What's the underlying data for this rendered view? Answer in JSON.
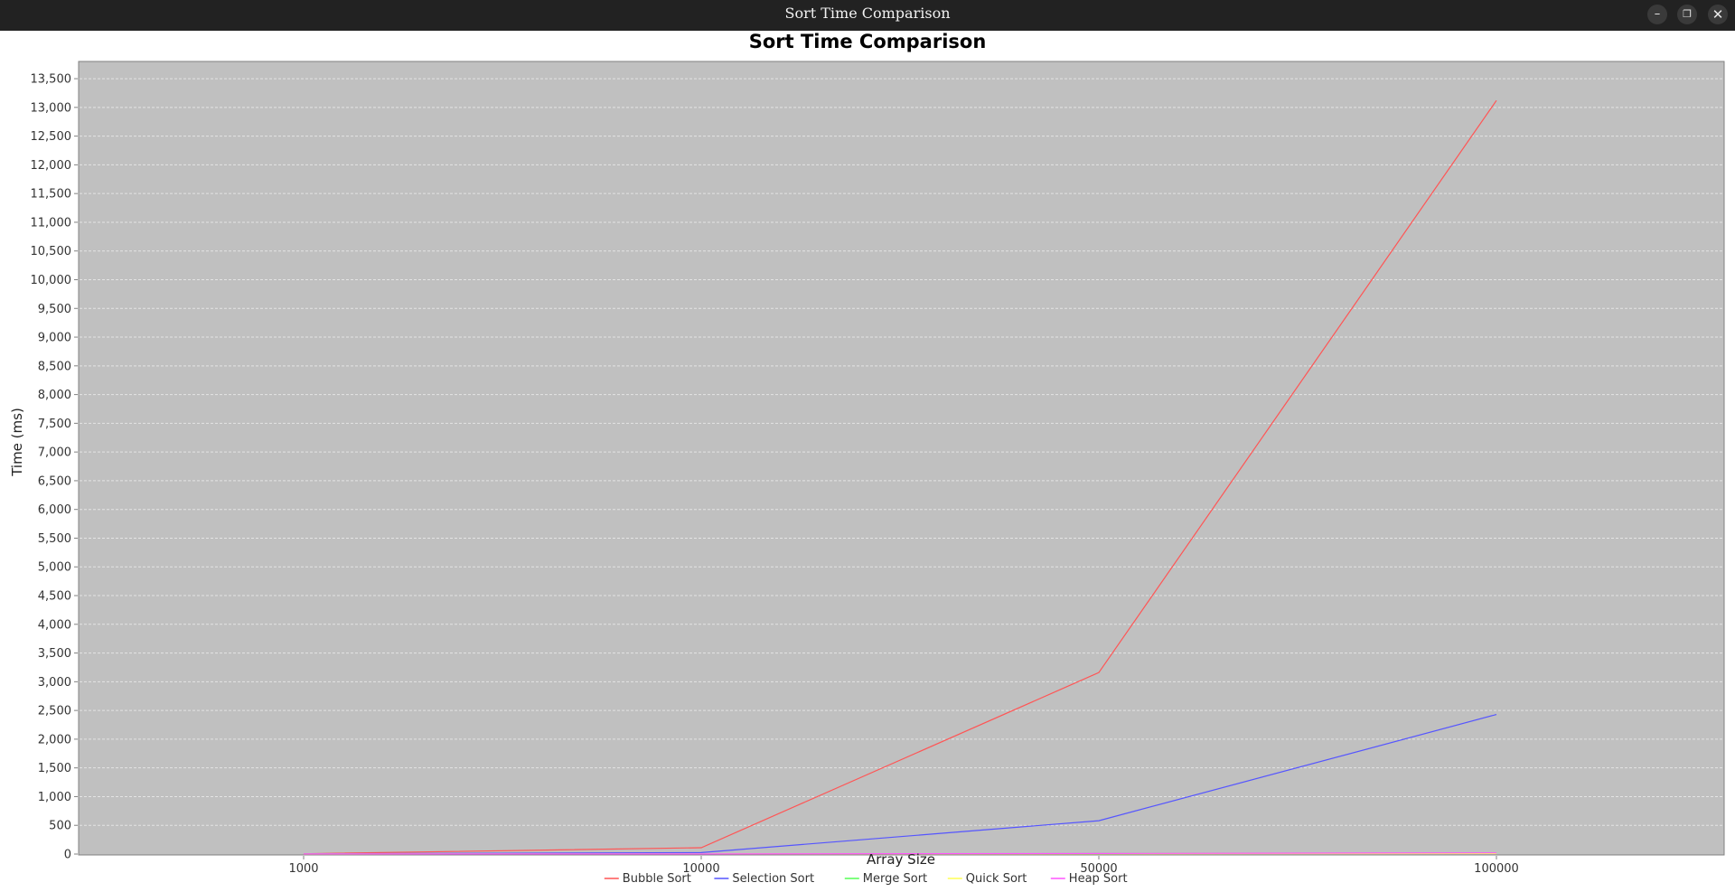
{
  "window": {
    "title": "Sort Time Comparison",
    "minimize_glyph": "–",
    "maximize_glyph": "❐",
    "close_glyph": "✕"
  },
  "chart_data": {
    "type": "line",
    "title": "Sort Time Comparison",
    "xlabel": "Array Size",
    "ylabel": "Time (ms)",
    "categories": [
      "1000",
      "10000",
      "50000",
      "100000"
    ],
    "ylim": [
      0,
      13800
    ],
    "yticks": [
      0,
      500,
      1000,
      1500,
      2000,
      2500,
      3000,
      3500,
      4000,
      4500,
      5000,
      5500,
      6000,
      6500,
      7000,
      7500,
      8000,
      8500,
      9000,
      9500,
      10000,
      10500,
      11000,
      11500,
      12000,
      12500,
      13000,
      13500
    ],
    "grid": true,
    "legend_position": "bottom",
    "plot_background": "#c0c0c0",
    "series": [
      {
        "name": "Bubble Sort",
        "color": "#ff5555",
        "values": [
          5,
          110,
          3160,
          13120
        ]
      },
      {
        "name": "Selection Sort",
        "color": "#5555ff",
        "values": [
          3,
          25,
          580,
          2430
        ]
      },
      {
        "name": "Merge Sort",
        "color": "#55ff55",
        "values": [
          1,
          2,
          8,
          15
        ]
      },
      {
        "name": "Quick Sort",
        "color": "#ffff55",
        "values": [
          0,
          1,
          5,
          10
        ]
      },
      {
        "name": "Heap Sort",
        "color": "#ff55ff",
        "values": [
          1,
          2,
          10,
          20
        ]
      }
    ]
  }
}
